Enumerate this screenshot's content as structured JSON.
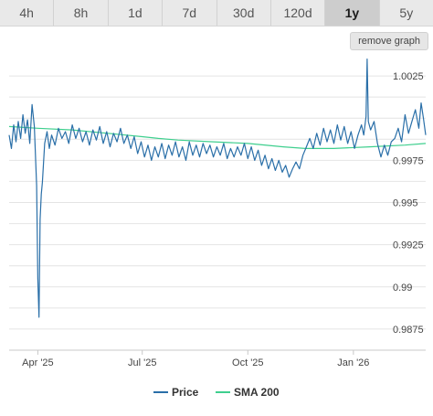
{
  "tabs": [
    {
      "label": "4h",
      "active": false
    },
    {
      "label": "8h",
      "active": false
    },
    {
      "label": "1d",
      "active": false
    },
    {
      "label": "7d",
      "active": false
    },
    {
      "label": "30d",
      "active": false
    },
    {
      "label": "120d",
      "active": false
    },
    {
      "label": "1y",
      "active": true
    },
    {
      "label": "5y",
      "active": false
    }
  ],
  "remove_graph_label": "remove graph",
  "chart_data": {
    "type": "line",
    "title": "",
    "xlabel": "",
    "ylabel": "",
    "x_range": [
      "2025-03-07",
      "2026-03-05"
    ],
    "ylim": [
      0.98625,
      1.00375
    ],
    "y_ticks": [
      0.9875,
      0.99,
      0.9925,
      0.995,
      0.9975,
      1.0025
    ],
    "y_tick_labels": [
      "0.9875",
      "0.99",
      "0.9925",
      "0.995",
      "0.9975",
      "1.0025"
    ],
    "x_ticks": [
      "2025-04-01",
      "2025-07-01",
      "2025-10-01",
      "2026-01-01"
    ],
    "x_tick_labels": [
      "Apr '25",
      "Jul '25",
      "Oct '25",
      "Jan '26"
    ],
    "grid": true,
    "legend_position": "bottom-center",
    "series": [
      {
        "name": "Price",
        "color": "#2a6fa8",
        "points": [
          [
            "2025-03-07",
            0.999
          ],
          [
            "2025-03-09",
            0.9982
          ],
          [
            "2025-03-11",
            0.9996
          ],
          [
            "2025-03-13",
            0.9986
          ],
          [
            "2025-03-15",
            0.9998
          ],
          [
            "2025-03-17",
            0.9988
          ],
          [
            "2025-03-19",
            1.0002
          ],
          [
            "2025-03-21",
            0.9991
          ],
          [
            "2025-03-23",
            0.9999
          ],
          [
            "2025-03-25",
            0.9985
          ],
          [
            "2025-03-27",
            1.0008
          ],
          [
            "2025-03-29",
            0.9995
          ],
          [
            "2025-03-31",
            0.996
          ],
          [
            "2025-04-01",
            0.9905
          ],
          [
            "2025-04-02",
            0.9882
          ],
          [
            "2025-04-03",
            0.994
          ],
          [
            "2025-04-04",
            0.9955
          ],
          [
            "2025-04-05",
            0.9962
          ],
          [
            "2025-04-07",
            0.9985
          ],
          [
            "2025-04-09",
            0.9992
          ],
          [
            "2025-04-11",
            0.9982
          ],
          [
            "2025-04-13",
            0.999
          ],
          [
            "2025-04-16",
            0.9984
          ],
          [
            "2025-04-19",
            0.9994
          ],
          [
            "2025-04-22",
            0.9988
          ],
          [
            "2025-04-25",
            0.9992
          ],
          [
            "2025-04-28",
            0.9985
          ],
          [
            "2025-05-01",
            0.9996
          ],
          [
            "2025-05-04",
            0.9988
          ],
          [
            "2025-05-07",
            0.9994
          ],
          [
            "2025-05-10",
            0.9986
          ],
          [
            "2025-05-13",
            0.9992
          ],
          [
            "2025-05-16",
            0.9984
          ],
          [
            "2025-05-19",
            0.9993
          ],
          [
            "2025-05-22",
            0.9987
          ],
          [
            "2025-05-25",
            0.9995
          ],
          [
            "2025-05-28",
            0.9985
          ],
          [
            "2025-05-31",
            0.9992
          ],
          [
            "2025-06-03",
            0.9983
          ],
          [
            "2025-06-06",
            0.9991
          ],
          [
            "2025-06-09",
            0.9986
          ],
          [
            "2025-06-12",
            0.9994
          ],
          [
            "2025-06-15",
            0.9985
          ],
          [
            "2025-06-18",
            0.999
          ],
          [
            "2025-06-21",
            0.9982
          ],
          [
            "2025-06-24",
            0.9989
          ],
          [
            "2025-06-27",
            0.9979
          ],
          [
            "2025-06-30",
            0.9986
          ],
          [
            "2025-07-03",
            0.9977
          ],
          [
            "2025-07-06",
            0.9984
          ],
          [
            "2025-07-09",
            0.9975
          ],
          [
            "2025-07-12",
            0.9983
          ],
          [
            "2025-07-15",
            0.9977
          ],
          [
            "2025-07-18",
            0.9985
          ],
          [
            "2025-07-21",
            0.9976
          ],
          [
            "2025-07-24",
            0.9984
          ],
          [
            "2025-07-27",
            0.9978
          ],
          [
            "2025-07-30",
            0.9986
          ],
          [
            "2025-08-02",
            0.9977
          ],
          [
            "2025-08-05",
            0.9983
          ],
          [
            "2025-08-08",
            0.9975
          ],
          [
            "2025-08-11",
            0.9986
          ],
          [
            "2025-08-14",
            0.9978
          ],
          [
            "2025-08-17",
            0.9984
          ],
          [
            "2025-08-20",
            0.9977
          ],
          [
            "2025-08-23",
            0.9985
          ],
          [
            "2025-08-26",
            0.9979
          ],
          [
            "2025-08-29",
            0.9984
          ],
          [
            "2025-09-01",
            0.9977
          ],
          [
            "2025-09-04",
            0.9983
          ],
          [
            "2025-09-07",
            0.9978
          ],
          [
            "2025-09-10",
            0.9985
          ],
          [
            "2025-09-13",
            0.9976
          ],
          [
            "2025-09-16",
            0.9982
          ],
          [
            "2025-09-19",
            0.9977
          ],
          [
            "2025-09-22",
            0.9983
          ],
          [
            "2025-09-25",
            0.9978
          ],
          [
            "2025-09-28",
            0.9985
          ],
          [
            "2025-10-01",
            0.9976
          ],
          [
            "2025-10-04",
            0.9983
          ],
          [
            "2025-10-07",
            0.9975
          ],
          [
            "2025-10-10",
            0.9981
          ],
          [
            "2025-10-13",
            0.9972
          ],
          [
            "2025-10-16",
            0.9978
          ],
          [
            "2025-10-19",
            0.997
          ],
          [
            "2025-10-22",
            0.9976
          ],
          [
            "2025-10-25",
            0.9969
          ],
          [
            "2025-10-28",
            0.9975
          ],
          [
            "2025-10-31",
            0.9968
          ],
          [
            "2025-11-03",
            0.9972
          ],
          [
            "2025-11-06",
            0.9965
          ],
          [
            "2025-11-09",
            0.997
          ],
          [
            "2025-11-12",
            0.9974
          ],
          [
            "2025-11-15",
            0.997
          ],
          [
            "2025-11-18",
            0.9978
          ],
          [
            "2025-11-21",
            0.9983
          ],
          [
            "2025-11-24",
            0.9988
          ],
          [
            "2025-11-27",
            0.9982
          ],
          [
            "2025-11-30",
            0.9991
          ],
          [
            "2025-12-03",
            0.9984
          ],
          [
            "2025-12-06",
            0.9994
          ],
          [
            "2025-12-09",
            0.9986
          ],
          [
            "2025-12-12",
            0.9993
          ],
          [
            "2025-12-15",
            0.9985
          ],
          [
            "2025-12-18",
            0.9996
          ],
          [
            "2025-12-21",
            0.9987
          ],
          [
            "2025-12-24",
            0.9995
          ],
          [
            "2025-12-27",
            0.9985
          ],
          [
            "2025-12-30",
            0.9992
          ],
          [
            "2026-01-02",
            0.9982
          ],
          [
            "2026-01-05",
            0.999
          ],
          [
            "2026-01-08",
            0.9996
          ],
          [
            "2026-01-10",
            0.999
          ],
          [
            "2026-01-12",
            1.0001
          ],
          [
            "2026-01-13",
            1.0035
          ],
          [
            "2026-01-14",
            0.9998
          ],
          [
            "2026-01-16",
            0.9993
          ],
          [
            "2026-01-19",
            0.9998
          ],
          [
            "2026-01-22",
            0.9985
          ],
          [
            "2026-01-25",
            0.9977
          ],
          [
            "2026-01-28",
            0.9984
          ],
          [
            "2026-01-31",
            0.9978
          ],
          [
            "2026-02-03",
            0.9986
          ],
          [
            "2026-02-06",
            0.9988
          ],
          [
            "2026-02-09",
            0.9994
          ],
          [
            "2026-02-12",
            0.9986
          ],
          [
            "2026-02-15",
            1.0002
          ],
          [
            "2026-02-18",
            0.9991
          ],
          [
            "2026-02-21",
            0.9998
          ],
          [
            "2026-02-24",
            1.0005
          ],
          [
            "2026-02-27",
            0.9994
          ],
          [
            "2026-03-01",
            1.0009
          ],
          [
            "2026-03-03",
            1.0
          ],
          [
            "2026-03-05",
            0.999
          ]
        ]
      },
      {
        "name": "SMA 200",
        "color": "#3ecf8e",
        "points": [
          [
            "2025-03-07",
            0.9995
          ],
          [
            "2025-04-01",
            0.9994
          ],
          [
            "2025-05-01",
            0.9993
          ],
          [
            "2025-06-01",
            0.9991
          ],
          [
            "2025-07-01",
            0.9989
          ],
          [
            "2025-07-15",
            0.9988
          ],
          [
            "2025-08-01",
            0.9987
          ],
          [
            "2025-09-01",
            0.9986
          ],
          [
            "2025-10-01",
            0.9985
          ],
          [
            "2025-11-01",
            0.9983
          ],
          [
            "2025-11-20",
            0.9982
          ],
          [
            "2025-12-15",
            0.9982
          ],
          [
            "2026-01-15",
            0.9983
          ],
          [
            "2026-02-15",
            0.9984
          ],
          [
            "2026-03-05",
            0.9985
          ]
        ]
      }
    ]
  }
}
